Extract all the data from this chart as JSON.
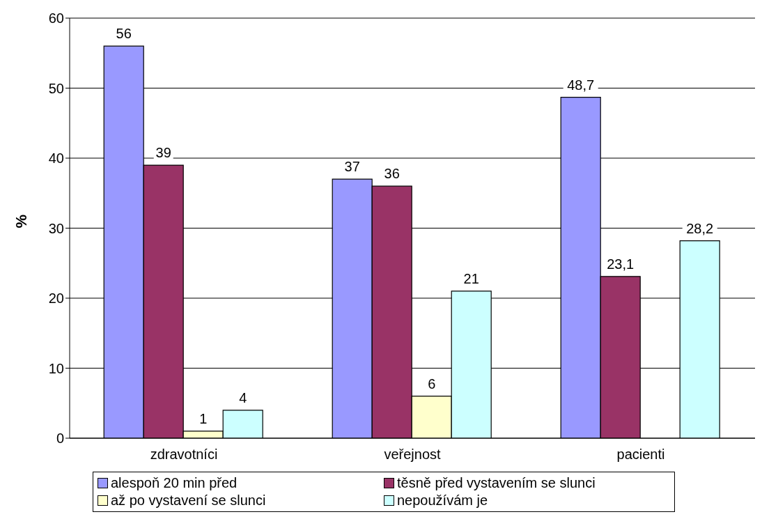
{
  "chart_data": {
    "type": "bar",
    "ylabel": "%",
    "categories": [
      "zdravotníci",
      "veřejnost",
      "pacienti"
    ],
    "series": [
      {
        "name": "alespoň 20 min před",
        "color": "#9999ff",
        "values": [
          56,
          37,
          48.7
        ],
        "value_labels": [
          "56",
          "37",
          "48,7"
        ]
      },
      {
        "name": "těsně před vystavením se slunci",
        "color": "#993366",
        "values": [
          39,
          36,
          23.1
        ],
        "value_labels": [
          "39",
          "36",
          "23,1"
        ]
      },
      {
        "name": "až po vystavení se slunci",
        "color": "#ffffcc",
        "values": [
          1,
          6,
          null
        ],
        "value_labels": [
          "1",
          "6",
          null
        ]
      },
      {
        "name": "nepoužívám je",
        "color": "#ccffff",
        "values": [
          4,
          21,
          28.2
        ],
        "value_labels": [
          "4",
          "21",
          "28,2"
        ]
      }
    ],
    "ylim": [
      0,
      60
    ],
    "yticks": [
      0,
      10,
      20,
      30,
      40,
      50,
      60
    ],
    "grid": "y",
    "legend": "bottom"
  }
}
